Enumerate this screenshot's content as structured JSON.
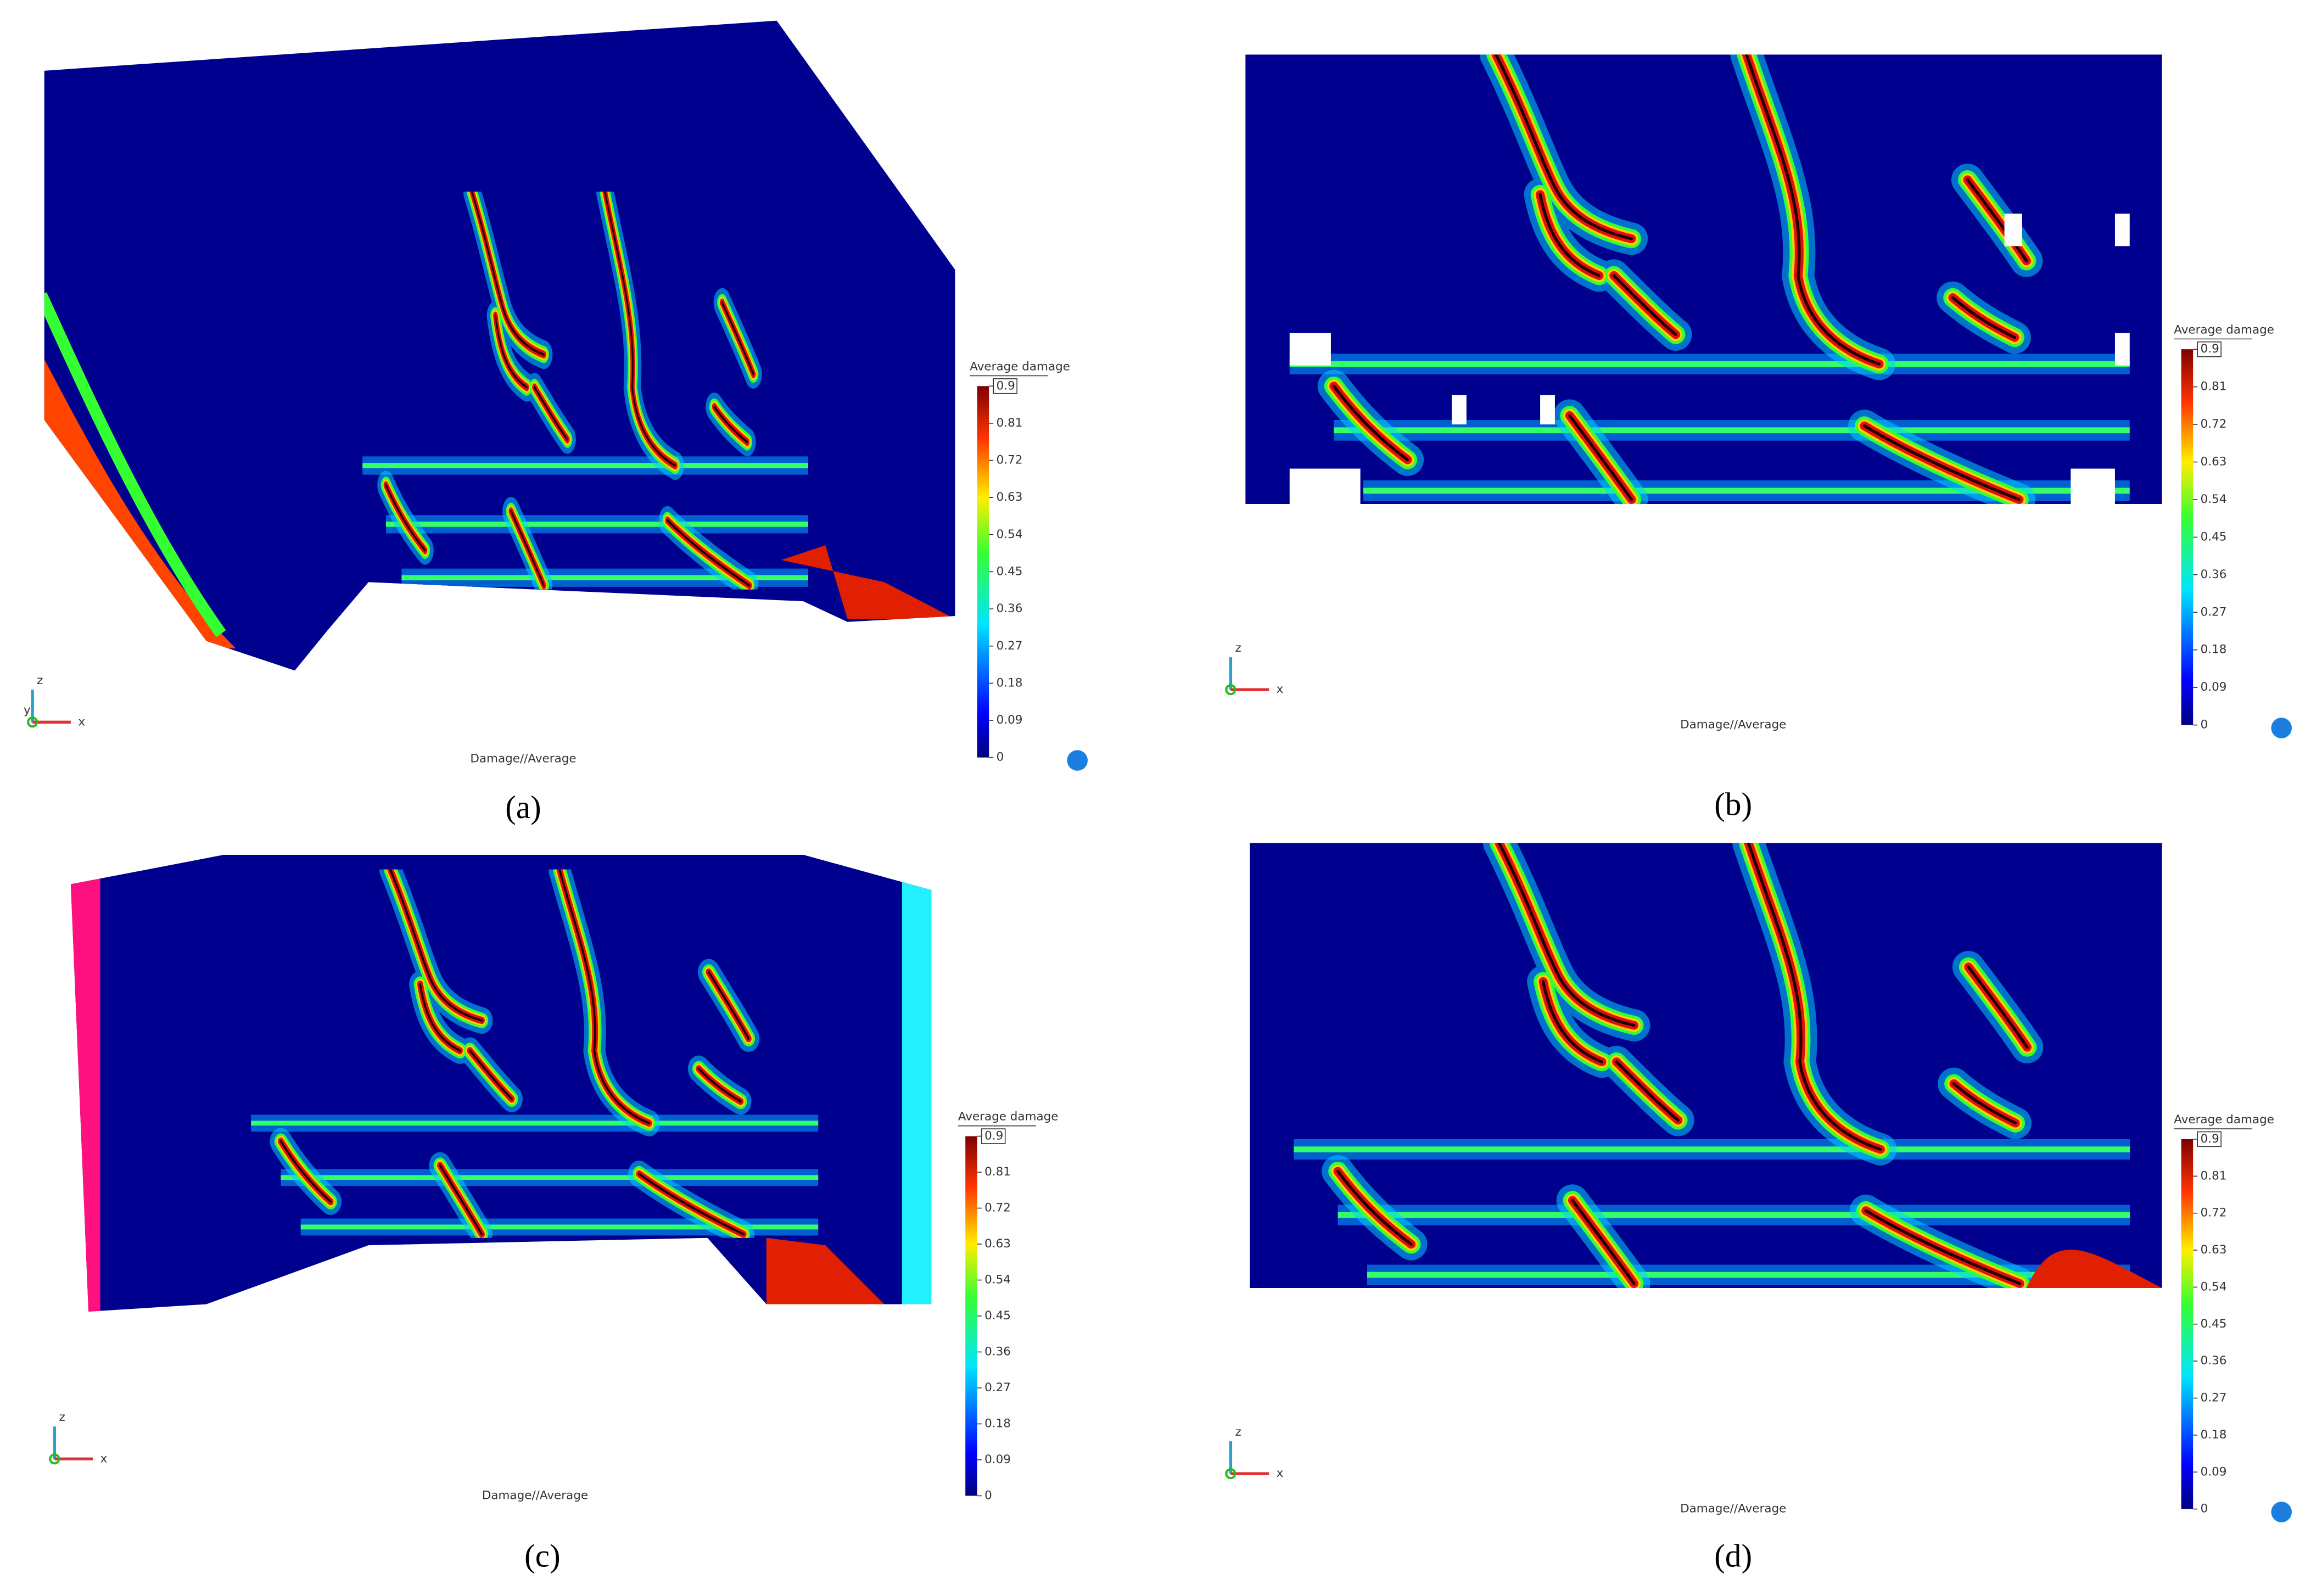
{
  "panels": [
    {
      "label": "(a)",
      "caption": "Damage//Average",
      "axes": [
        "z",
        "x",
        "y"
      ],
      "colorbar": {
        "title": "Average damage",
        "ticks": [
          0.9,
          0.81,
          0.72,
          0.63,
          0.54,
          0.45,
          0.36,
          0.27,
          0.18,
          0.09,
          0
        ]
      }
    },
    {
      "label": "(b)",
      "caption": "Damage//Average",
      "axes": [
        "z",
        "x"
      ],
      "colorbar": {
        "title": "Average damage",
        "ticks": [
          0.9,
          0.81,
          0.72,
          0.63,
          0.54,
          0.45,
          0.36,
          0.27,
          0.18,
          0.09,
          0
        ]
      }
    },
    {
      "label": "(c)",
      "caption": "Damage//Average",
      "axes": [
        "z",
        "x"
      ],
      "colorbar": {
        "title": "Average damage",
        "ticks": [
          0.9,
          0.81,
          0.72,
          0.63,
          0.54,
          0.45,
          0.36,
          0.27,
          0.18,
          0.09,
          0
        ]
      }
    },
    {
      "label": "(d)",
      "caption": "Damage//Average",
      "axes": [
        "z",
        "x"
      ],
      "colorbar": {
        "title": "Average damage",
        "ticks": [
          0.9,
          0.81,
          0.72,
          0.63,
          0.54,
          0.45,
          0.36,
          0.27,
          0.18,
          0.09,
          0
        ]
      }
    }
  ]
}
